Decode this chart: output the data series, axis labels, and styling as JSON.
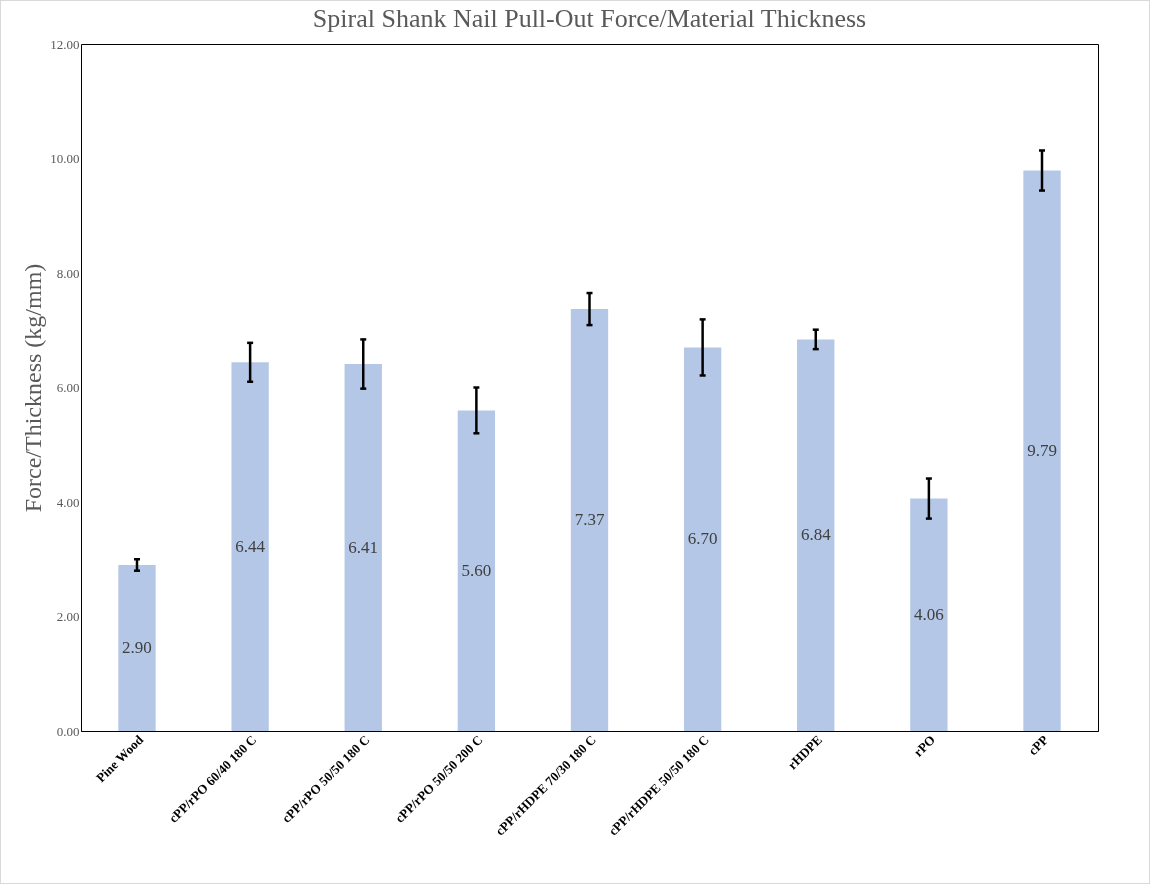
{
  "chart_data": {
    "type": "bar",
    "title": "Spiral Shank Nail Pull-Out Force/Material Thickness",
    "ylabel": "Force/Thickness (kg/mm)",
    "categories": [
      "Pine Wood",
      "cPP/rPO 60/40 180 C",
      "cPP/rPO 50/50 180 C",
      "cPP/rPO 50/50 200 C",
      "cPP/rHDPE 70/30 180 C",
      "cPP/rHDPE 50/50 180 C",
      "rHDPE",
      "rPO",
      "cPP"
    ],
    "values": [
      2.9,
      6.44,
      6.41,
      5.6,
      7.37,
      6.7,
      6.84,
      4.06,
      9.79
    ],
    "errors": [
      0.1,
      0.34,
      0.43,
      0.4,
      0.28,
      0.49,
      0.17,
      0.35,
      0.35
    ],
    "value_labels": [
      "2.90",
      "6.44",
      "6.41",
      "5.60",
      "7.37",
      "6.70",
      "6.84",
      "4.06",
      "9.79"
    ],
    "color": "#b4c7e7",
    "ylim": [
      0,
      12
    ],
    "yticks": [
      {
        "value": 0,
        "label": "0.00"
      },
      {
        "value": 2,
        "label": "2.00"
      },
      {
        "value": 4,
        "label": "4.00"
      },
      {
        "value": 6,
        "label": "6.00"
      },
      {
        "value": 8,
        "label": "8.00"
      },
      {
        "value": 10,
        "label": "10.00"
      },
      {
        "value": 12,
        "label": "12.00"
      }
    ],
    "grid": false
  }
}
